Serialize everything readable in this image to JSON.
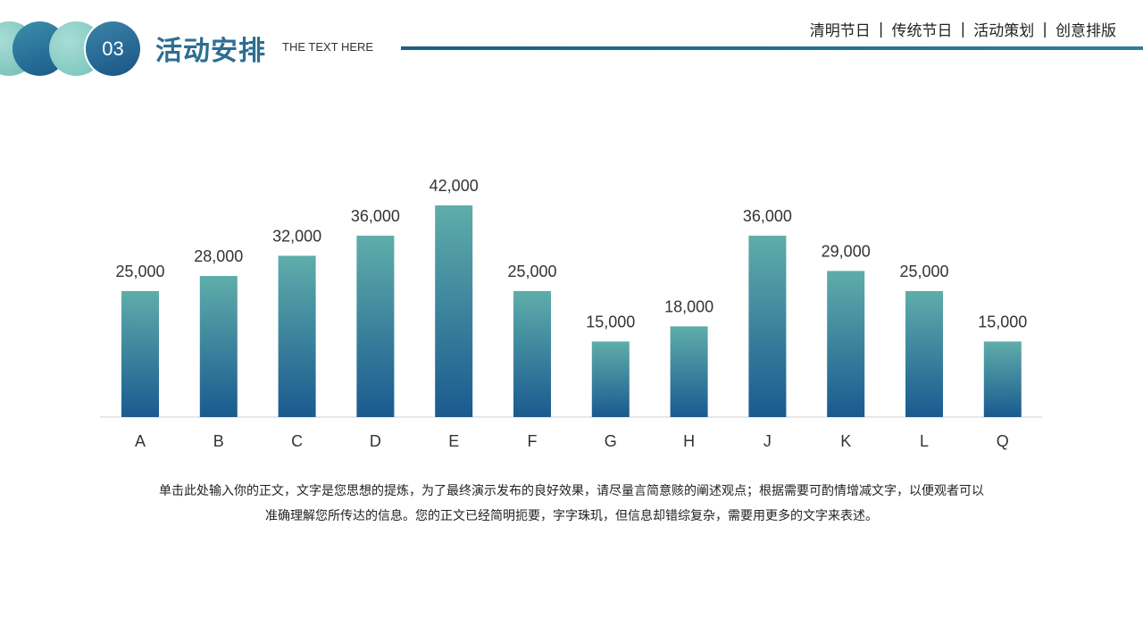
{
  "header": {
    "number": "03",
    "title": "活动安排",
    "subtitle": "THE TEXT HERE",
    "nav": [
      "清明节日",
      "传统节日",
      "活动策划",
      "创意排版"
    ],
    "nav_separator": "|"
  },
  "colors": {
    "accent": "#2c6e91",
    "bar_top": "#5fadaa",
    "bar_bottom": "#1a5a90"
  },
  "chart_data": {
    "type": "bar",
    "categories": [
      "A",
      "B",
      "C",
      "D",
      "E",
      "F",
      "G",
      "H",
      "J",
      "K",
      "L",
      "Q"
    ],
    "values": [
      25000,
      28000,
      32000,
      36000,
      42000,
      25000,
      15000,
      18000,
      36000,
      29000,
      25000,
      15000
    ],
    "value_labels": [
      "25,000",
      "28,000",
      "32,000",
      "36,000",
      "42,000",
      "25,000",
      "15,000",
      "18,000",
      "36,000",
      "29,000",
      "25,000",
      "15,000"
    ],
    "ylim": [
      0,
      42000
    ],
    "grid": false,
    "legend": "none"
  },
  "body": {
    "text_line1": "单击此处输入你的正文，文字是您思想的提炼，为了最终演示发布的良好效果，请尽量言简意赅的阐述观点；根据需要可酌情增减文字，以便观者可以",
    "text_line2": "准确理解您所传达的信息。您的正文已经简明扼要，字字珠玑，但信息却错综复杂，需要用更多的文字来表述。"
  }
}
